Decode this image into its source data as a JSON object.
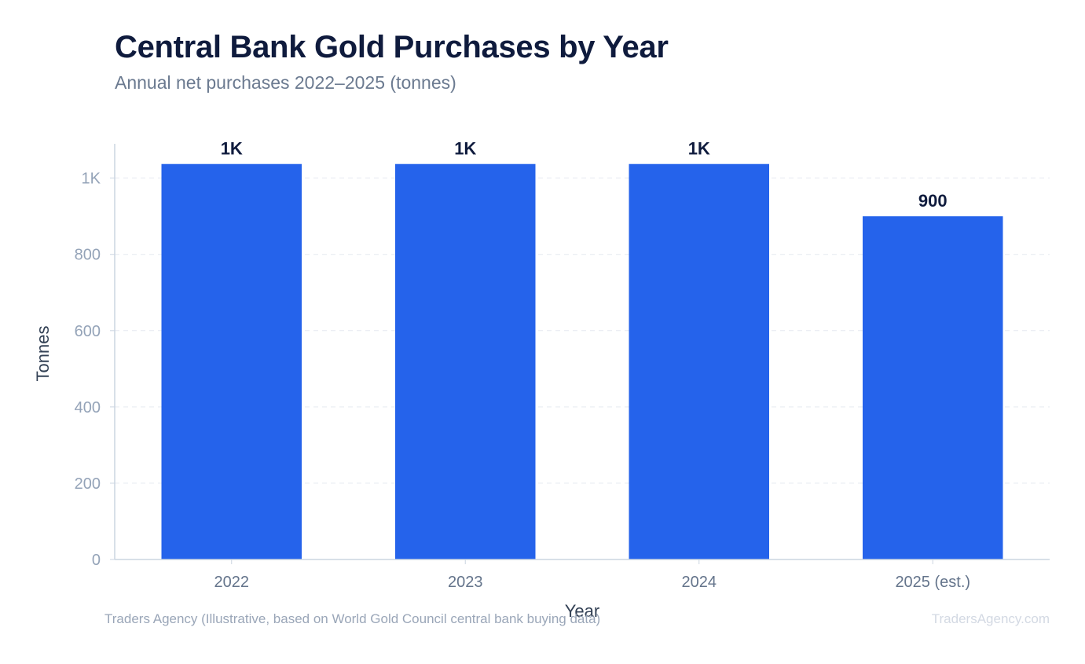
{
  "header": {
    "title": "Central Bank Gold Purchases by Year",
    "subtitle": "Annual net purchases 2022–2025 (tonnes)"
  },
  "footer": {
    "source": "Traders Agency (Illustrative, based on World Gold Council central bank buying data)",
    "brand": "TradersAgency.com"
  },
  "chart_data": {
    "type": "bar",
    "categories": [
      "2022",
      "2023",
      "2024",
      "2025 (est.)"
    ],
    "values": [
      1037,
      1037,
      1037,
      900
    ],
    "data_labels": [
      "1K",
      "1K",
      "1K",
      "900"
    ],
    "title": "Central Bank Gold Purchases by Year",
    "subtitle": "Annual net purchases 2022–2025 (tonnes)",
    "xlabel": "Year",
    "ylabel": "Tonnes",
    "ylim": [
      0,
      1090
    ],
    "yticks": [
      0,
      200,
      400,
      600,
      800,
      1000
    ],
    "ytick_labels": [
      "0",
      "200",
      "400",
      "600",
      "800",
      "1K"
    ],
    "grid": true,
    "colors": {
      "bar": "#2563eb",
      "grid": "#e5e9f0",
      "axis": "#cbd5e1"
    }
  }
}
